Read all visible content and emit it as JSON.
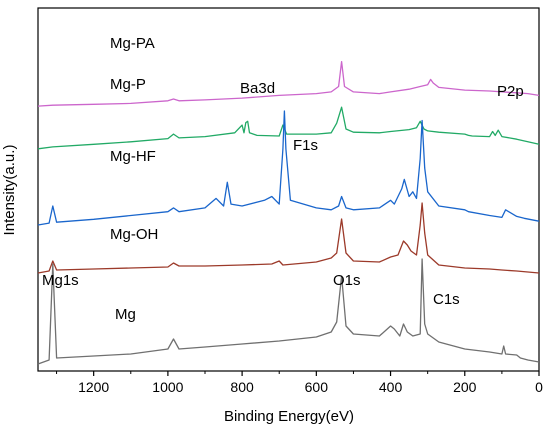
{
  "chart_data": {
    "type": "line",
    "xlabel": "Binding Energy(eV)",
    "ylabel": "Intensity(a.u.)",
    "xlim": [
      1350,
      0
    ],
    "x_reversed": true,
    "x_ticks": [
      1200,
      1000,
      800,
      600,
      400,
      200,
      0
    ],
    "y_ticks": [],
    "grid": false,
    "legend": "none",
    "annotations": [
      {
        "id": "mg1s",
        "text": "Mg1s",
        "x": 1310
      },
      {
        "id": "o1s",
        "text": "O1s",
        "x": 532
      },
      {
        "id": "c1s",
        "text": "C1s",
        "x": 285
      },
      {
        "id": "f1s",
        "text": "F1s",
        "x": 686
      },
      {
        "id": "ba3d",
        "text": "Ba3d",
        "x": 790
      },
      {
        "id": "p2p",
        "text": "P2p",
        "x": 133
      }
    ],
    "series": [
      {
        "name": "Mg-PA",
        "color": "#cc66cc",
        "x": [
          1350,
          1310,
          1200,
          1100,
          1000,
          985,
          970,
          900,
          800,
          700,
          600,
          560,
          540,
          532,
          524,
          500,
          430,
          400,
          350,
          320,
          300,
          292,
          285,
          270,
          200,
          133,
          100,
          60,
          30,
          0
        ],
        "values": [
          50,
          51,
          52,
          53,
          56,
          58,
          56,
          57,
          59,
          62,
          64,
          66,
          72,
          100,
          72,
          66,
          64,
          66,
          69,
          72,
          74,
          80,
          76,
          71,
          68,
          67,
          66,
          65,
          64,
          62
        ]
      },
      {
        "name": "Mg-P",
        "color": "#22aa66",
        "x": [
          1350,
          1310,
          1200,
          1100,
          1000,
          985,
          970,
          900,
          820,
          800,
          795,
          790,
          785,
          780,
          760,
          700,
          690,
          680,
          600,
          560,
          545,
          532,
          520,
          500,
          430,
          400,
          350,
          330,
          320,
          310,
          300,
          270,
          200,
          190,
          180,
          133,
          125,
          118,
          110,
          100,
          80,
          60,
          30,
          0
        ],
        "values": [
          45,
          48,
          52,
          56,
          61,
          68,
          62,
          64,
          70,
          82,
          70,
          86,
          88,
          70,
          66,
          65,
          82,
          68,
          68,
          70,
          85,
          110,
          76,
          71,
          70,
          72,
          75,
          78,
          88,
          76,
          73,
          71,
          68,
          66,
          65,
          64,
          72,
          66,
          74,
          64,
          62,
          60,
          56,
          52
        ]
      },
      {
        "name": "Mg-HF",
        "color": "#1a66cc",
        "x": [
          1350,
          1320,
          1310,
          1300,
          1200,
          1100,
          1000,
          985,
          970,
          900,
          870,
          850,
          840,
          830,
          800,
          740,
          720,
          700,
          690,
          686,
          682,
          670,
          600,
          560,
          540,
          532,
          520,
          500,
          430,
          400,
          390,
          370,
          363,
          350,
          340,
          330,
          320,
          315,
          308,
          300,
          270,
          200,
          190,
          133,
          100,
          90,
          60,
          40,
          0
        ],
        "values": [
          40,
          42,
          60,
          43,
          46,
          50,
          54,
          58,
          54,
          58,
          68,
          60,
          85,
          62,
          60,
          66,
          70,
          62,
          120,
          160,
          120,
          66,
          58,
          56,
          60,
          70,
          58,
          56,
          58,
          66,
          62,
          78,
          88,
          70,
          75,
          68,
          110,
          150,
          100,
          75,
          60,
          56,
          54,
          50,
          48,
          56,
          49,
          47,
          44
        ]
      },
      {
        "name": "Mg-OH",
        "color": "#9c3a2a",
        "x": [
          1350,
          1320,
          1310,
          1300,
          1200,
          1100,
          1000,
          985,
          970,
          900,
          800,
          720,
          700,
          690,
          600,
          560,
          545,
          532,
          520,
          500,
          430,
          400,
          380,
          365,
          355,
          345,
          330,
          320,
          315,
          308,
          300,
          270,
          200,
          133,
          100,
          60,
          0
        ],
        "values": [
          40,
          42,
          52,
          43,
          44,
          45,
          46,
          50,
          47,
          47,
          48,
          49,
          52,
          48,
          51,
          55,
          60,
          94,
          60,
          52,
          51,
          56,
          58,
          72,
          68,
          62,
          58,
          88,
          110,
          80,
          58,
          48,
          45,
          44,
          43,
          42,
          40
        ]
      },
      {
        "name": "Mg",
        "color": "#707070",
        "x": [
          1350,
          1320,
          1310,
          1300,
          1200,
          1100,
          1000,
          985,
          970,
          900,
          800,
          700,
          600,
          560,
          545,
          532,
          520,
          500,
          430,
          400,
          390,
          375,
          365,
          355,
          340,
          320,
          315,
          308,
          300,
          270,
          250,
          200,
          133,
          100,
          95,
          90,
          60,
          50,
          30,
          0
        ],
        "values": [
          40,
          44,
          140,
          46,
          48,
          50,
          55,
          65,
          55,
          57,
          60,
          63,
          67,
          72,
          82,
          128,
          78,
          70,
          68,
          78,
          75,
          68,
          80,
          72,
          68,
          70,
          145,
          80,
          70,
          62,
          60,
          55,
          52,
          50,
          58,
          50,
          49,
          46,
          44,
          42
        ]
      }
    ]
  }
}
